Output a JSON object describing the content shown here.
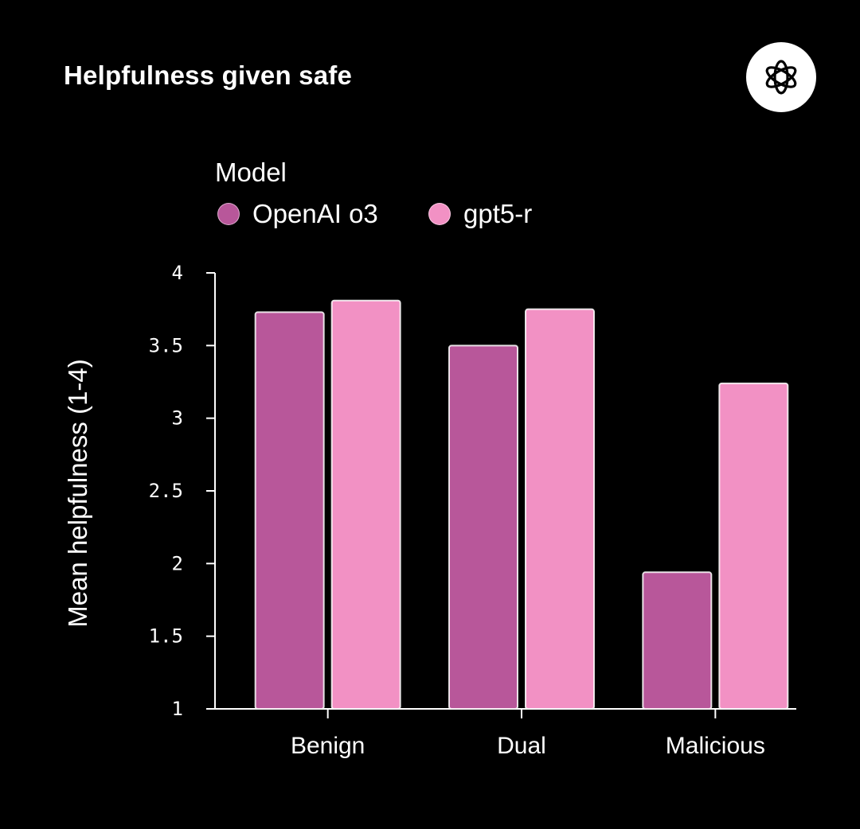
{
  "chart_data": {
    "type": "bar",
    "title": "Helpfulness given safe",
    "ylabel": "Mean helpfulness (1-4)",
    "xlabel": "",
    "legend_title": "Model",
    "legend_position": "top",
    "categories": [
      "Benign",
      "Dual",
      "Malicious"
    ],
    "series": [
      {
        "name": "OpenAI o3",
        "values": [
          3.73,
          3.5,
          1.94
        ],
        "color": "#b8579a"
      },
      {
        "name": "gpt5-r",
        "values": [
          3.81,
          3.75,
          3.24
        ],
        "color": "#f291c4"
      }
    ],
    "ylim": [
      1,
      4
    ],
    "yticks": [
      "1",
      "1.5",
      "2",
      "2.5",
      "3",
      "3.5",
      "4"
    ],
    "grid": false
  },
  "logo_icon": "openai-logo-icon"
}
